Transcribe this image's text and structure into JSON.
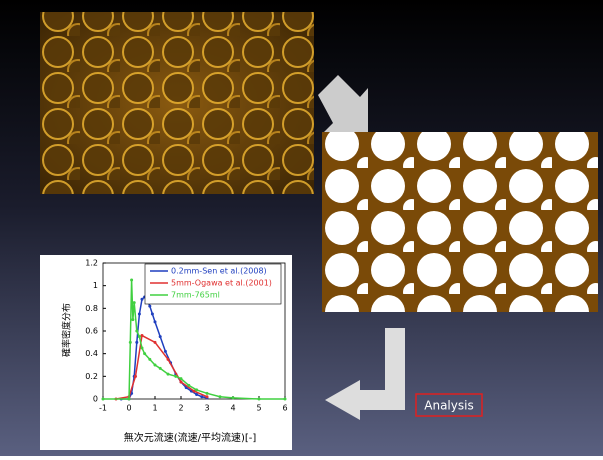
{
  "chart_data": {
    "type": "line",
    "xlabel": "無次元流速(流速/平均流速)[-]",
    "ylabel": "確率密度分布",
    "xlim": [
      -1,
      6
    ],
    "xticks": [
      -1,
      0,
      1,
      2,
      3,
      4,
      5,
      6
    ],
    "ylim": [
      0,
      1.2
    ],
    "yticks": [
      0,
      0.2,
      0.4,
      0.6,
      0.8,
      1,
      1.2
    ],
    "series": [
      {
        "name": "0.2mm-Sen et al.(2008)",
        "color": "#1f3fbf",
        "x": [
          -0.3,
          0,
          0.1,
          0.2,
          0.3,
          0.4,
          0.5,
          0.6,
          0.7,
          0.8,
          0.9,
          1.0,
          1.2,
          1.4,
          1.6,
          1.8,
          2.0,
          2.2,
          2.4,
          2.6,
          2.8,
          3.0
        ],
        "values": [
          0,
          0,
          0.05,
          0.2,
          0.5,
          0.75,
          0.88,
          0.9,
          0.88,
          0.82,
          0.75,
          0.68,
          0.55,
          0.42,
          0.32,
          0.22,
          0.15,
          0.1,
          0.07,
          0.04,
          0.02,
          0.01
        ]
      },
      {
        "name": "5mm-Ogawa et al.(2001)",
        "color": "#e03030",
        "x": [
          -0.5,
          0,
          0.25,
          0.5,
          1.0,
          1.5,
          2.0,
          2.5,
          3.0
        ],
        "values": [
          0,
          0.02,
          0.2,
          0.56,
          0.5,
          0.35,
          0.15,
          0.07,
          0.02
        ]
      },
      {
        "name": "7mm-765ml",
        "color": "#40d040",
        "x": [
          -1,
          0,
          0.05,
          0.1,
          0.15,
          0.2,
          0.3,
          0.4,
          0.5,
          0.6,
          0.8,
          1.0,
          1.2,
          1.5,
          1.8,
          2.0,
          2.3,
          2.6,
          3.0,
          3.5,
          4.0,
          5.0,
          6.0
        ],
        "values": [
          0,
          0,
          0.5,
          1.05,
          0.7,
          0.85,
          0.6,
          0.55,
          0.45,
          0.4,
          0.35,
          0.3,
          0.27,
          0.22,
          0.2,
          0.18,
          0.12,
          0.08,
          0.05,
          0.02,
          0.01,
          0,
          0
        ]
      }
    ],
    "annotation": "Analysis"
  }
}
